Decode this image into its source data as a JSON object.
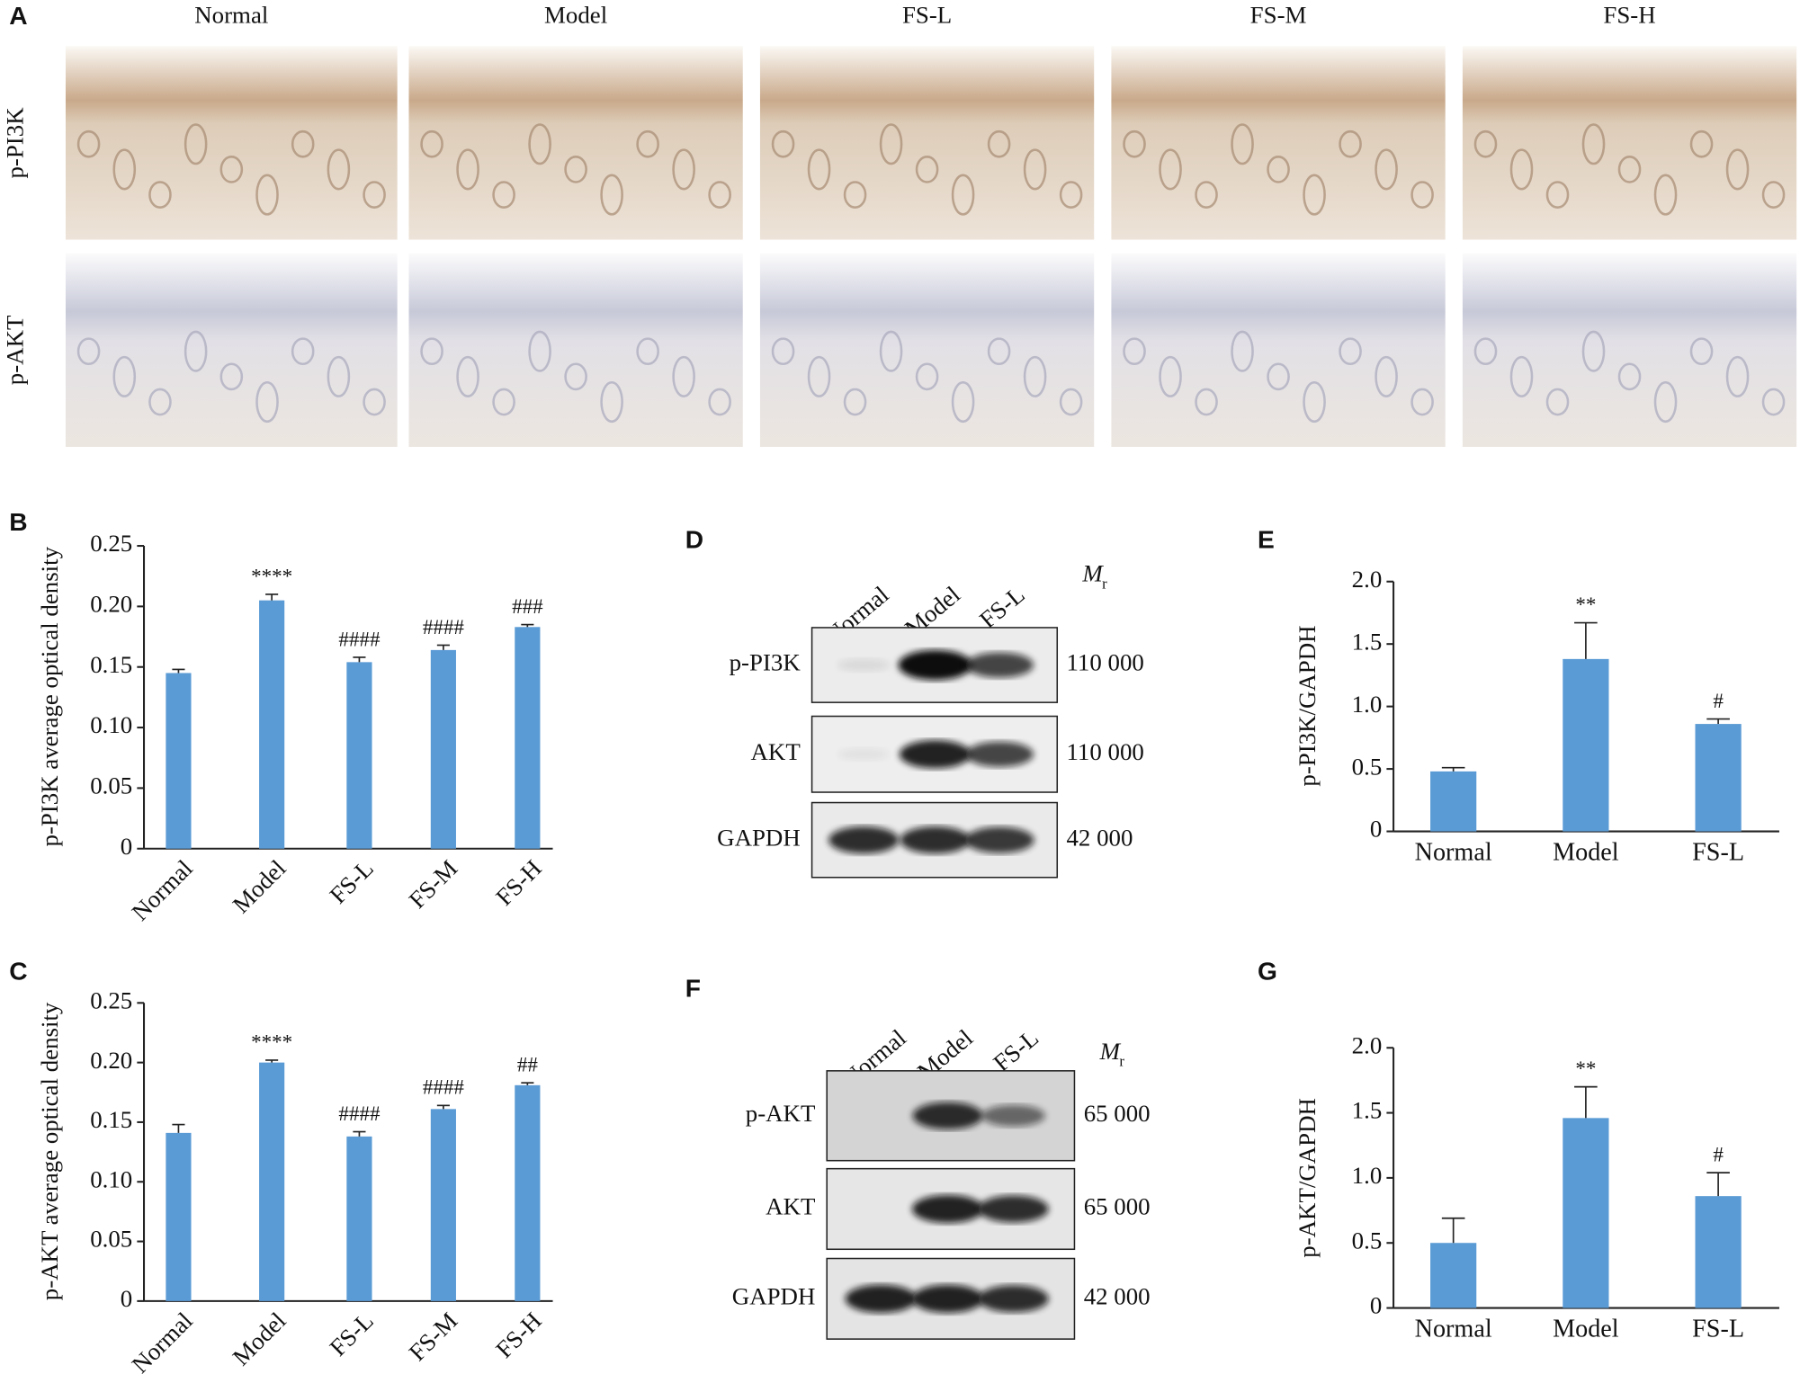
{
  "histology": {
    "panel": "A",
    "columns": [
      "Normal",
      "Model",
      "FS-L",
      "FS-M",
      "FS-H"
    ],
    "rows": [
      "p-PI3K",
      "p-AKT"
    ]
  },
  "blots": [
    {
      "panel": "D",
      "lanes": [
        "Normal",
        "Model",
        "FS-L"
      ],
      "mr_symbol": "M",
      "mr_subscript": "r",
      "rows": [
        {
          "label": "p-PI3K",
          "mr": "110 000"
        },
        {
          "label": "AKT",
          "mr": "110 000"
        },
        {
          "label": "GAPDH",
          "mr": "42 000"
        }
      ]
    },
    {
      "panel": "F",
      "lanes": [
        "Normal",
        "Model",
        "FS-L"
      ],
      "mr_symbol": "M",
      "mr_subscript": "r",
      "rows": [
        {
          "label": "p-AKT",
          "mr": "65 000"
        },
        {
          "label": "AKT",
          "mr": "65 000"
        },
        {
          "label": "GAPDH",
          "mr": "42 000"
        }
      ]
    }
  ],
  "chart_data": [
    {
      "type": "bar",
      "panel": "B",
      "ylabel": "p-PI3K average optical density",
      "color": "#5b9bd5",
      "categories": [
        "Normal",
        "Model",
        "FS-L",
        "FS-M",
        "FS-H"
      ],
      "values": [
        0.145,
        0.205,
        0.154,
        0.164,
        0.183
      ],
      "errors": [
        0.003,
        0.005,
        0.004,
        0.004,
        0.002
      ],
      "annotations": [
        null,
        "****",
        "####",
        "####",
        "###"
      ],
      "ylim": [
        0,
        0.25
      ],
      "yticks": [
        0,
        0.05,
        {
          "value": 0.1,
          "label": "0.10"
        },
        0.15,
        {
          "value": 0.2,
          "label": "0.20"
        },
        0.25
      ]
    },
    {
      "type": "bar",
      "panel": "C",
      "ylabel": "p-AKT average optical density",
      "color": "#5b9bd5",
      "categories": [
        "Normal",
        "Model",
        "FS-L",
        "FS-M",
        "FS-H"
      ],
      "values": [
        0.141,
        0.2,
        0.138,
        0.161,
        0.181
      ],
      "errors": [
        0.007,
        0.002,
        0.004,
        0.003,
        0.002
      ],
      "annotations": [
        null,
        "****",
        "####",
        "####",
        "##"
      ],
      "ylim": [
        0,
        0.25
      ],
      "yticks": [
        0,
        0.05,
        {
          "value": 0.1,
          "label": "0.10"
        },
        0.15,
        {
          "value": 0.2,
          "label": "0.20"
        },
        0.25
      ]
    },
    {
      "type": "bar",
      "panel": "E",
      "ylabel": "p-PI3K/GAPDH",
      "color": "#5b9bd5",
      "categories": [
        "Normal",
        "Model",
        "FS-L"
      ],
      "values": [
        0.48,
        1.38,
        0.86
      ],
      "errors": [
        0.03,
        0.29,
        0.04
      ],
      "annotations": [
        null,
        "**",
        "#"
      ],
      "ylim": [
        0,
        2
      ],
      "yticks": [
        0,
        0.5,
        {
          "value": 1,
          "label": "1.0"
        },
        1.5,
        {
          "value": 2,
          "label": "2.0"
        }
      ]
    },
    {
      "type": "bar",
      "panel": "G",
      "ylabel": "p-AKT/GAPDH",
      "color": "#5b9bd5",
      "categories": [
        "Normal",
        "Model",
        "FS-L"
      ],
      "values": [
        0.5,
        1.46,
        0.86
      ],
      "errors": [
        0.19,
        0.24,
        0.18
      ],
      "annotations": [
        null,
        "**",
        "#"
      ],
      "ylim": [
        0,
        2
      ],
      "yticks": [
        0,
        0.5,
        {
          "value": 1,
          "label": "1.0"
        },
        1.5,
        {
          "value": 2,
          "label": "2.0"
        }
      ]
    }
  ]
}
